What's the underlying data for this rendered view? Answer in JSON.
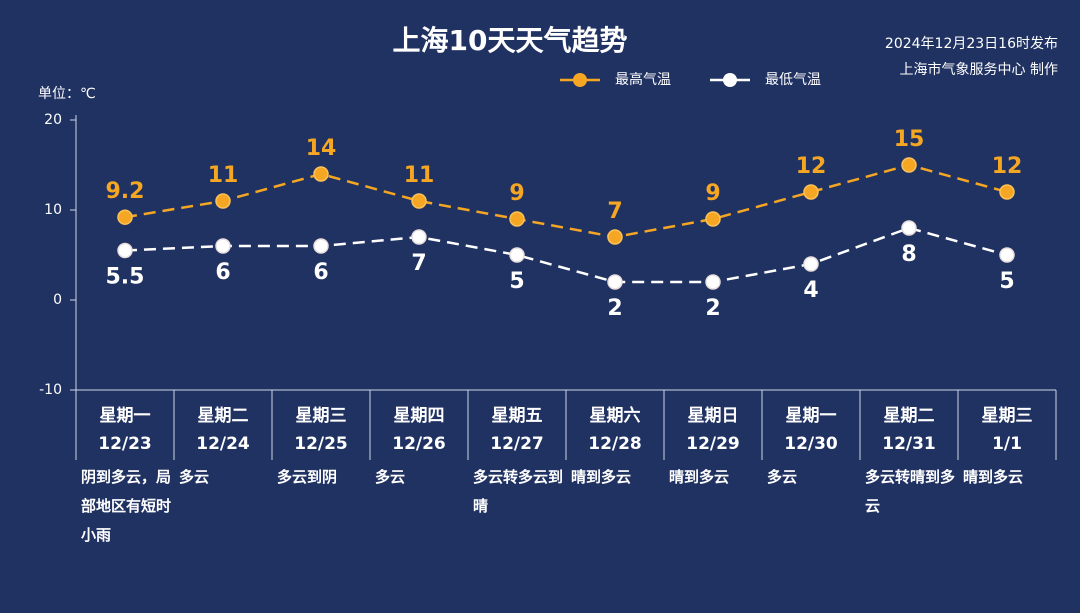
{
  "chart_data": {
    "type": "line",
    "title": "上海10天天气趋势",
    "publish_time": "2024年12月23日16时发布",
    "producer": "上海市气象服务中心 制作",
    "y_label": "单位：℃",
    "categories": [
      "星期一",
      "星期二",
      "星期三",
      "星期四",
      "星期五",
      "星期六",
      "星期日",
      "星期一",
      "星期二",
      "星期三"
    ],
    "dates": [
      "12/23",
      "12/24",
      "12/25",
      "12/26",
      "12/27",
      "12/28",
      "12/29",
      "12/30",
      "12/31",
      "1/1"
    ],
    "weather": [
      "阴到多云，局部地区有短时小雨",
      "多云",
      "多云到阴",
      "多云",
      "多云转多云到晴",
      "晴到多云",
      "晴到多云",
      "多云",
      "多云转晴到多云",
      "晴到多云"
    ],
    "series": [
      {
        "name": "最高气温",
        "color": "#f5a623",
        "values": [
          9.2,
          11,
          14,
          11,
          9,
          7,
          9,
          12,
          15,
          12
        ]
      },
      {
        "name": "最低气温",
        "color": "#ffffff",
        "values": [
          5.5,
          6,
          6,
          7,
          5,
          2,
          2,
          4,
          8,
          5
        ]
      }
    ],
    "ylim": [
      -10,
      20
    ],
    "yticks": [
      -10,
      0,
      10,
      20
    ]
  }
}
